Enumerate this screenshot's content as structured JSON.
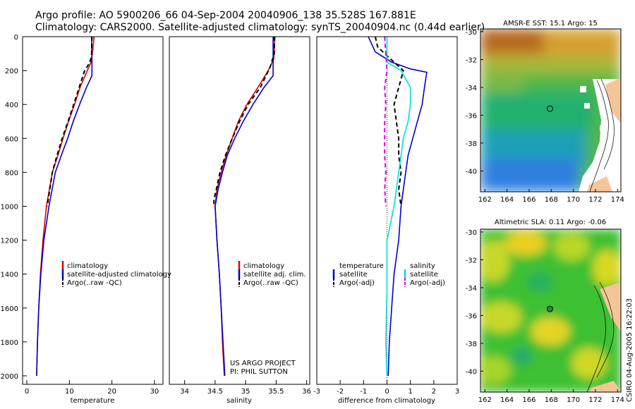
{
  "header": {
    "line1": "Argo profile: AO 5900206_66 04-Sep-2004 20040906_138 35.528S 167.881E",
    "line2": "Climatology: CARS2000. Satellite-adjusted climatology: synTS_20040904.nc (0.44d earlier)"
  },
  "colors": {
    "climatology": "#dd0000",
    "satellite": "#0000cc",
    "argo": "#000000",
    "salinity_satellite": "#00dddd",
    "salinity_argo": "#dd00dd"
  },
  "stamp": "CSIRO 04-Aug-2005 16:22:03",
  "credits": [
    "US ARGO PROJECT",
    "PI: PHIL SUTTON"
  ],
  "chart_data": [
    {
      "type": "line",
      "id": "temperature",
      "xlabel": "temperature",
      "ylabel": "",
      "xlim": [
        -1,
        32
      ],
      "ylim": [
        0,
        2050
      ],
      "x_ticks": [
        0,
        10,
        20,
        30
      ],
      "y_ticks": [
        0,
        200,
        400,
        600,
        800,
        1000,
        1200,
        1400,
        1600,
        1800,
        2000
      ],
      "series": [
        {
          "name": "climatology",
          "color": "#dd0000",
          "dash": "",
          "points": [
            [
              15.8,
              0
            ],
            [
              15.5,
              80
            ],
            [
              15.1,
              150
            ],
            [
              14.2,
              200
            ],
            [
              12.5,
              300
            ],
            [
              11.2,
              400
            ],
            [
              9.8,
              500
            ],
            [
              8.5,
              600
            ],
            [
              7.3,
              700
            ],
            [
              6.0,
              800
            ],
            [
              4.6,
              1000
            ],
            [
              3.8,
              1200
            ],
            [
              3.2,
              1400
            ],
            [
              2.8,
              1600
            ],
            [
              2.5,
              1800
            ],
            [
              2.3,
              2000
            ]
          ]
        },
        {
          "name": "satellite-adjusted climatology",
          "color": "#0000cc",
          "dash": "",
          "points": [
            [
              15.2,
              0
            ],
            [
              15.3,
              120
            ],
            [
              15.3,
              230
            ],
            [
              14.0,
              300
            ],
            [
              12.4,
              400
            ],
            [
              10.9,
              500
            ],
            [
              9.6,
              600
            ],
            [
              8.1,
              700
            ],
            [
              6.7,
              800
            ],
            [
              5.2,
              1000
            ],
            [
              4.0,
              1200
            ],
            [
              3.3,
              1400
            ],
            [
              2.8,
              1600
            ],
            [
              2.5,
              1800
            ],
            [
              2.3,
              2000
            ]
          ]
        },
        {
          "name": "Argo(..raw -QC)",
          "color": "#000000",
          "dash": "6,4",
          "points": [
            [
              15.3,
              0
            ],
            [
              15.2,
              120
            ],
            [
              14.6,
              160
            ],
            [
              13.6,
              200
            ],
            [
              12.3,
              300
            ],
            [
              11.0,
              400
            ],
            [
              9.7,
              500
            ],
            [
              8.3,
              600
            ],
            [
              7.1,
              700
            ],
            [
              6.0,
              800
            ],
            [
              4.8,
              1000
            ]
          ]
        }
      ]
    },
    {
      "type": "line",
      "id": "salinity",
      "xlabel": "salinity",
      "ylabel": "",
      "xlim": [
        33.75,
        36.05
      ],
      "ylim": [
        0,
        2050
      ],
      "x_ticks": [
        34,
        34.5,
        35,
        35.5,
        36
      ],
      "series": [
        {
          "name": "climatology",
          "color": "#dd0000",
          "dash": "",
          "points": [
            [
              35.48,
              0
            ],
            [
              35.46,
              130
            ],
            [
              35.37,
              200
            ],
            [
              35.2,
              300
            ],
            [
              35.02,
              400
            ],
            [
              34.88,
              500
            ],
            [
              34.78,
              600
            ],
            [
              34.68,
              700
            ],
            [
              34.6,
              800
            ],
            [
              34.53,
              900
            ],
            [
              34.5,
              1000
            ],
            [
              34.53,
              1200
            ],
            [
              34.57,
              1400
            ],
            [
              34.6,
              1600
            ],
            [
              34.62,
              1800
            ],
            [
              34.65,
              2000
            ]
          ]
        },
        {
          "name": "satellite adj. clim.",
          "color": "#0000cc",
          "dash": "",
          "points": [
            [
              35.45,
              0
            ],
            [
              35.45,
              110
            ],
            [
              35.45,
              230
            ],
            [
              35.3,
              300
            ],
            [
              35.12,
              400
            ],
            [
              34.96,
              500
            ],
            [
              34.82,
              600
            ],
            [
              34.7,
              700
            ],
            [
              34.62,
              800
            ],
            [
              34.55,
              900
            ],
            [
              34.5,
              1000
            ],
            [
              34.53,
              1200
            ],
            [
              34.57,
              1400
            ],
            [
              34.6,
              1600
            ],
            [
              34.63,
              1800
            ],
            [
              34.66,
              2000
            ]
          ]
        },
        {
          "name": "Argo(..raw -QC)",
          "color": "#000000",
          "dash": "6,4",
          "points": [
            [
              35.47,
              0
            ],
            [
              35.47,
              100
            ],
            [
              35.4,
              180
            ],
            [
              35.24,
              300
            ],
            [
              35.04,
              400
            ],
            [
              34.9,
              500
            ],
            [
              34.78,
              600
            ],
            [
              34.67,
              700
            ],
            [
              34.58,
              800
            ],
            [
              34.52,
              900
            ],
            [
              34.48,
              960
            ],
            [
              34.48,
              1000
            ]
          ]
        }
      ]
    },
    {
      "type": "line",
      "id": "difference",
      "xlabel": "difference from climatology",
      "ylabel": "",
      "xlim": [
        -3,
        3
      ],
      "ylim": [
        0,
        2050
      ],
      "x_ticks": [
        -3,
        -2,
        -1,
        0,
        1,
        2,
        3
      ],
      "legend": {
        "temperature_title": "temperature",
        "salinity_title": "salinity"
      },
      "series": [
        {
          "name": "satellite",
          "group": "temperature",
          "color": "#0000cc",
          "dash": "",
          "points": [
            [
              -0.8,
              0
            ],
            [
              -0.7,
              30
            ],
            [
              -0.5,
              90
            ],
            [
              0.2,
              150
            ],
            [
              1.0,
              190
            ],
            [
              1.7,
              210
            ],
            [
              1.6,
              300
            ],
            [
              1.5,
              400
            ],
            [
              1.3,
              500
            ],
            [
              1.1,
              600
            ],
            [
              0.9,
              700
            ],
            [
              0.8,
              800
            ],
            [
              0.7,
              900
            ],
            [
              0.6,
              1000
            ],
            [
              0.5,
              1200
            ],
            [
              0.3,
              1400
            ],
            [
              0.2,
              1600
            ],
            [
              0.1,
              1800
            ],
            [
              0.05,
              2000
            ]
          ]
        },
        {
          "name": "Argo(-adj)",
          "group": "temperature",
          "color": "#000000",
          "dash": "6,4",
          "points": [
            [
              -0.5,
              0
            ],
            [
              -0.4,
              60
            ],
            [
              -0.1,
              100
            ],
            [
              0.3,
              150
            ],
            [
              0.7,
              200
            ],
            [
              0.5,
              300
            ],
            [
              0.3,
              400
            ],
            [
              0.4,
              500
            ],
            [
              0.5,
              600
            ],
            [
              0.5,
              700
            ],
            [
              0.6,
              800
            ],
            [
              0.5,
              900
            ],
            [
              0.6,
              1000
            ]
          ]
        },
        {
          "name": "satellite",
          "group": "salinity",
          "color": "#00dddd",
          "dash": "",
          "points": [
            [
              0.0,
              0
            ],
            [
              0.0,
              150
            ],
            [
              0.6,
              200
            ],
            [
              1.0,
              300
            ],
            [
              1.0,
              400
            ],
            [
              0.9,
              500
            ],
            [
              0.7,
              600
            ],
            [
              0.6,
              700
            ],
            [
              0.5,
              800
            ],
            [
              0.4,
              900
            ],
            [
              0.3,
              1000
            ],
            [
              0.0,
              1200
            ],
            [
              0.0,
              1500
            ],
            [
              -0.05,
              1800
            ],
            [
              0.0,
              2000
            ]
          ]
        },
        {
          "name": "Argo(-adj)",
          "group": "salinity",
          "color": "#dd00dd",
          "dash": "6,4",
          "points": [
            [
              -0.1,
              0
            ],
            [
              -0.05,
              100
            ],
            [
              0.0,
              200
            ],
            [
              -0.1,
              300
            ],
            [
              -0.05,
              400
            ],
            [
              -0.1,
              500
            ],
            [
              -0.1,
              700
            ],
            [
              -0.05,
              800
            ],
            [
              -0.1,
              900
            ],
            [
              -0.05,
              1000
            ]
          ]
        }
      ]
    },
    {
      "type": "heatmap",
      "id": "sst-map",
      "title": "AMSR-E SST: 15.1 Argo: 15",
      "x_ticks": [
        162,
        164,
        166,
        168,
        170,
        172,
        174
      ],
      "y_ticks": [
        -30,
        -32,
        -34,
        -36,
        -38,
        -40
      ],
      "xlim": [
        161.6,
        174.3
      ],
      "ylim": [
        -41.5,
        -29.8
      ],
      "marker": [
        167.881,
        -35.528
      ]
    },
    {
      "type": "heatmap",
      "id": "sla-map",
      "title": "Altimetric SLA: 0.11 Argo: -0.06",
      "x_ticks": [
        162,
        164,
        166,
        168,
        170,
        172,
        174
      ],
      "y_ticks": [
        -30,
        -32,
        -34,
        -36,
        -38,
        -40
      ],
      "xlim": [
        161.6,
        174.3
      ],
      "ylim": [
        -41.5,
        -29.8
      ],
      "marker": [
        167.881,
        -35.528
      ]
    }
  ]
}
